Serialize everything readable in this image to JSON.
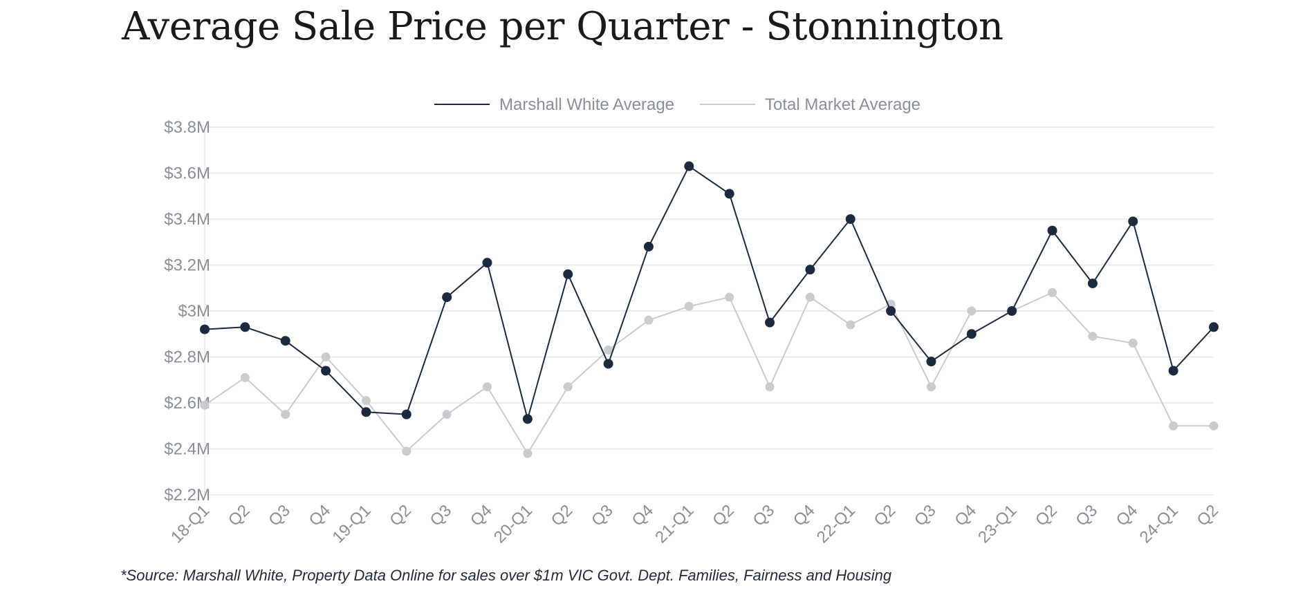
{
  "title": "Average Sale Price per Quarter - Stonnington",
  "source_note": "*Source: Marshall White, Property Data Online for sales over $1m VIC Govt. Dept. Families, Fairness and Housing",
  "colors": {
    "mw": "#1b2a3e",
    "market": "#c9cbcf",
    "grid": "#e8e8ea",
    "tick": "#8a8f96"
  },
  "chart_data": {
    "type": "line",
    "title": "Average Sale Price per Quarter - Stonnington",
    "x": [
      "18-Q1",
      "Q2",
      "Q3",
      "Q4",
      "19-Q1",
      "Q2",
      "Q3",
      "Q4",
      "20-Q1",
      "Q2",
      "Q3",
      "Q4",
      "21-Q1",
      "Q2",
      "Q3",
      "Q4",
      "22-Q1",
      "Q2",
      "Q3",
      "Q4",
      "23-Q1",
      "Q2",
      "Q3",
      "Q4",
      "24-Q1",
      "Q2"
    ],
    "y_ticks": [
      "$2.2M",
      "$2.4M",
      "$2.6M",
      "$2.8M",
      "$3M",
      "$3.2M",
      "$3.4M",
      "$3.6M",
      "$3.8M"
    ],
    "ylim": [
      2.2,
      3.8
    ],
    "y_unit": "$M",
    "grid": true,
    "legend_position": "top-center",
    "series": [
      {
        "name": "Marshall White Average",
        "values": [
          2.92,
          2.93,
          2.87,
          2.74,
          2.56,
          2.55,
          3.06,
          3.21,
          2.53,
          3.16,
          2.77,
          3.28,
          3.63,
          3.51,
          2.95,
          3.18,
          3.4,
          3.0,
          2.78,
          2.9,
          3.0,
          3.35,
          3.12,
          3.39,
          2.74,
          2.93
        ]
      },
      {
        "name": "Total Market Average",
        "values": [
          2.59,
          2.71,
          2.55,
          2.8,
          2.61,
          2.39,
          2.55,
          2.67,
          2.38,
          2.67,
          2.83,
          2.96,
          3.02,
          3.06,
          2.67,
          3.06,
          2.94,
          3.03,
          2.67,
          3.0,
          3.0,
          3.08,
          2.89,
          2.86,
          2.5,
          2.5
        ]
      }
    ]
  }
}
